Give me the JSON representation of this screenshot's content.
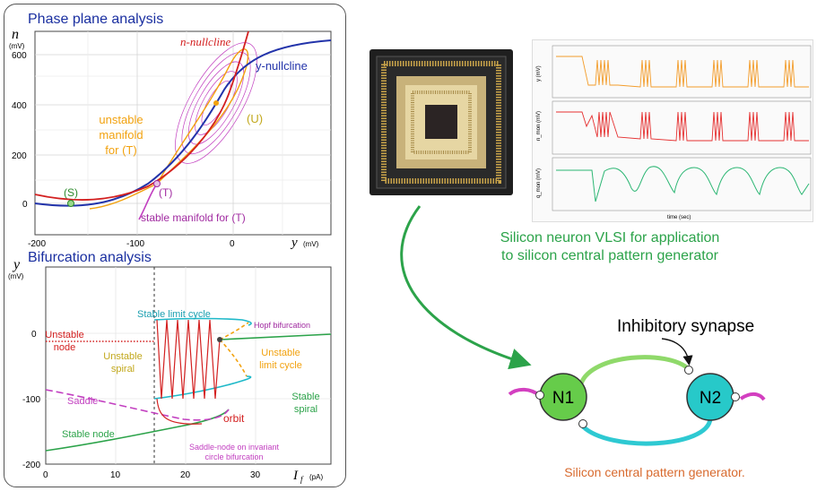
{
  "phase_plane": {
    "title": "Phase plane analysis",
    "y_axis_var": "n",
    "y_axis_unit": "(mV)",
    "x_axis_var": "y",
    "x_axis_unit": "(mV)",
    "y_ticks": [
      "600",
      "400",
      "200",
      "0"
    ],
    "x_ticks": [
      "-200",
      "-100",
      "0"
    ],
    "n_nullcline_label": "n-nullcline",
    "y_nullcline_label": "y-nullcline",
    "unstable_manifold_label": [
      "unstable",
      "manifold",
      "for (T)"
    ],
    "stable_manifold_label": "stable manifold for (T)",
    "point_U": "(U)",
    "point_T": "(T)",
    "point_S": "(S)"
  },
  "bifurcation": {
    "title": "Bifurcation analysis",
    "y_axis_var": "y",
    "y_axis_unit": "(mV)",
    "x_axis_var": "I",
    "x_axis_sub": "f",
    "x_axis_unit": "(pA)",
    "y_ticks": [
      "0",
      "-100",
      "-200"
    ],
    "x_ticks": [
      "0",
      "10",
      "20",
      "30"
    ],
    "stable_limit_cycle": "Stable limit cycle",
    "hopf": "Hopf bifurcation",
    "unstable_node": [
      "Unstable",
      "node"
    ],
    "unstable_spiral": [
      "Unstable",
      "spiral"
    ],
    "unstable_limit_cycle": [
      "Unstable",
      "limit cycle"
    ],
    "saddle": "Saddle",
    "stable_spiral": [
      "Stable",
      "spiral"
    ],
    "orbit": "orbit",
    "stable_node": "Stable node",
    "snic": [
      "Saddle-node on invariant",
      "circle bifurcation"
    ]
  },
  "scope": {
    "y_labels": [
      "y (mV)",
      "n_mon (mV)",
      "q_mon (mV)"
    ],
    "x_label": "time (sec)",
    "colors": [
      "#f39c2a",
      "#e53030",
      "#2bb673"
    ]
  },
  "captions": {
    "vlsi": [
      "Silicon neuron VLSI for application",
      "to silicon central pattern generator"
    ],
    "cpg": "Silicon central pattern generator.",
    "inhibitory": "Inhibitory synapse"
  },
  "cpg": {
    "n1": "N1",
    "n2": "N2",
    "n1_color": "#66cc4a",
    "n2_color": "#27c9c9",
    "synapse_color": "#d33fc0"
  }
}
